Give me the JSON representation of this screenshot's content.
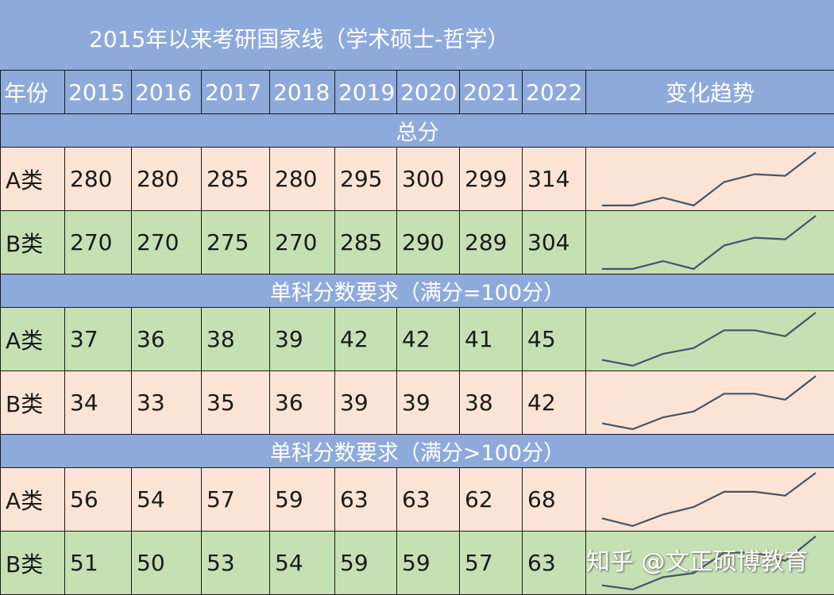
{
  "title": "2015年以来考研国家线（学术硕士-哲学）",
  "header": {
    "first": "年份",
    "years": [
      "2015",
      "2016",
      "2017",
      "2018",
      "2019",
      "2020",
      "2021",
      "2022"
    ],
    "trend": "变化趋势"
  },
  "sections": [
    {
      "label": "总分",
      "rows": [
        {
          "label": "A类",
          "values": [
            "280",
            "280",
            "285",
            "280",
            "295",
            "300",
            "299",
            "314"
          ]
        },
        {
          "label": "B类",
          "values": [
            "270",
            "270",
            "275",
            "270",
            "285",
            "290",
            "289",
            "304"
          ]
        }
      ]
    },
    {
      "label": "单科分数要求（满分=100分）",
      "rows": [
        {
          "label": "A类",
          "values": [
            "37",
            "36",
            "38",
            "39",
            "42",
            "42",
            "41",
            "45"
          ]
        },
        {
          "label": "B类",
          "values": [
            "34",
            "33",
            "35",
            "36",
            "39",
            "39",
            "38",
            "42"
          ]
        }
      ]
    },
    {
      "label": "单科分数要求（满分>100分）",
      "rows": [
        {
          "label": "A类",
          "values": [
            "56",
            "54",
            "57",
            "59",
            "63",
            "63",
            "62",
            "68"
          ]
        },
        {
          "label": "B类",
          "values": [
            "51",
            "50",
            "53",
            "54",
            "59",
            "59",
            "57",
            "63"
          ]
        }
      ]
    }
  ],
  "colors": {
    "header_blue": "#8eaadb",
    "row_pink": "#fbe4d5",
    "row_green": "#c5e0b3",
    "sparkline": "#44546a"
  },
  "watermark": "知乎 @文正硕博教育"
}
